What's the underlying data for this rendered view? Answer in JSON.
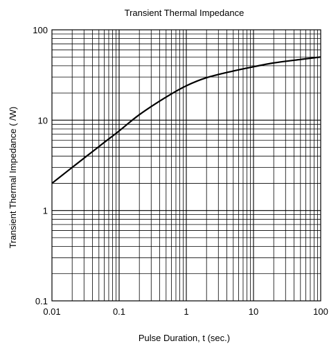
{
  "chart_data": {
    "type": "line",
    "title": "Transient Thermal Impedance",
    "xlabel": "Pulse Duration, t (sec.)",
    "ylabel": "Transient Thermal Impedance (    /W)",
    "xscale": "log",
    "yscale": "log",
    "xlim": [
      0.01,
      100
    ],
    "ylim": [
      0.1,
      100
    ],
    "grid": true,
    "x_ticks": [
      "0.01",
      "0.1",
      "1",
      "10",
      "100"
    ],
    "y_ticks": [
      "0.1",
      "1",
      "10",
      "100"
    ],
    "series": [
      {
        "x": [
          0.01,
          0.02,
          0.05,
          0.1,
          0.2,
          0.5,
          1,
          2,
          5,
          10,
          20,
          50,
          100
        ],
        "y": [
          2.0,
          3.0,
          5.1,
          7.6,
          11.5,
          18.0,
          24.0,
          29.5,
          35.0,
          39.0,
          43.0,
          47.0,
          50.0
        ]
      }
    ],
    "colors": {
      "line": "#000000",
      "grid": "#000000"
    }
  }
}
